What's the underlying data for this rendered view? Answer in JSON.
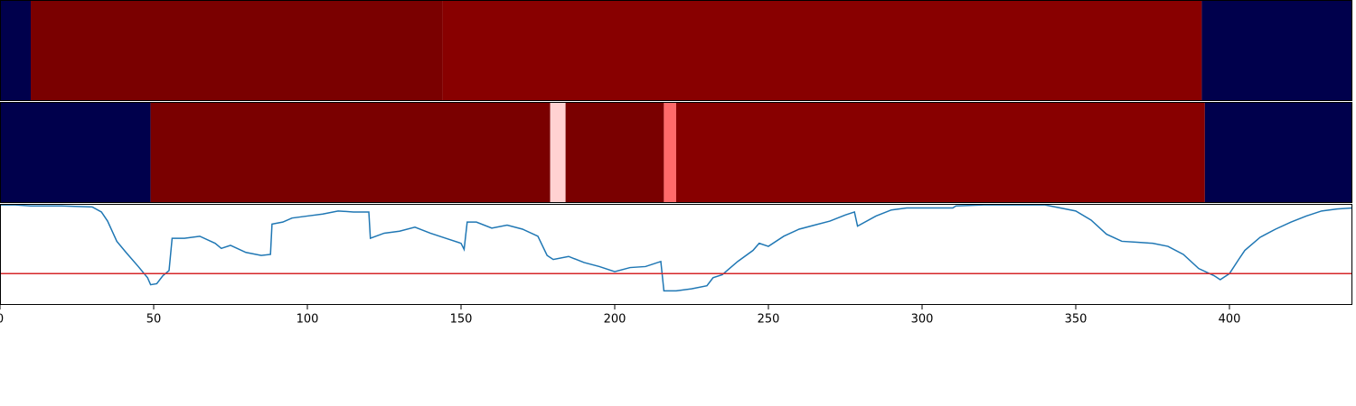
{
  "chart_data": [
    {
      "type": "heatmap",
      "xlim": [
        0,
        440
      ],
      "segments": [
        {
          "start": 0,
          "end": 10,
          "color": "#00004c"
        },
        {
          "start": 10,
          "end": 144,
          "color": "#7a0000"
        },
        {
          "start": 144,
          "end": 391,
          "color": "#880000"
        },
        {
          "start": 391,
          "end": 440,
          "color": "#00004c"
        }
      ]
    },
    {
      "type": "heatmap",
      "xlim": [
        0,
        440
      ],
      "segments": [
        {
          "start": 0,
          "end": 49,
          "color": "#00004c"
        },
        {
          "start": 49,
          "end": 179,
          "color": "#7a0000"
        },
        {
          "start": 179,
          "end": 184,
          "color": "#ffd2d2"
        },
        {
          "start": 184,
          "end": 216,
          "color": "#7a0000"
        },
        {
          "start": 216,
          "end": 220,
          "color": "#ff6a6a"
        },
        {
          "start": 220,
          "end": 392,
          "color": "#880000"
        },
        {
          "start": 392,
          "end": 440,
          "color": "#00004c"
        }
      ]
    },
    {
      "type": "line",
      "xlim": [
        0,
        440
      ],
      "ylim": [
        0,
        1
      ],
      "xticks": [
        0,
        50,
        100,
        150,
        200,
        250,
        300,
        350,
        400
      ],
      "threshold": 0.31,
      "threshold_color": "#d62728",
      "series": [
        {
          "color": "#1f77b4",
          "x": [
            0,
            5,
            10,
            20,
            30,
            33,
            35,
            38,
            41,
            45,
            48,
            49,
            51,
            53,
            55,
            56,
            60,
            65,
            70,
            72,
            75,
            80,
            85,
            88,
            88.5,
            92,
            95,
            100,
            105,
            110,
            115,
            120,
            120.5,
            125,
            130,
            135,
            140,
            145,
            150,
            151,
            152,
            155,
            160,
            165,
            170,
            175,
            178,
            180,
            185,
            190,
            195,
            200,
            205,
            210,
            215,
            216,
            220,
            225,
            230,
            232,
            235,
            240,
            245,
            247,
            250,
            255,
            260,
            265,
            270,
            275,
            278,
            279,
            285,
            290,
            295,
            300,
            310,
            311,
            320,
            330,
            340,
            345,
            350,
            355,
            360,
            365,
            370,
            375,
            380,
            385,
            390,
            395,
            397,
            400,
            403,
            405,
            410,
            415,
            420,
            425,
            430,
            435,
            440
          ],
          "values": [
            0.99,
            0.99,
            0.98,
            0.98,
            0.97,
            0.92,
            0.83,
            0.63,
            0.52,
            0.38,
            0.27,
            0.2,
            0.21,
            0.29,
            0.34,
            0.66,
            0.66,
            0.68,
            0.61,
            0.56,
            0.59,
            0.52,
            0.49,
            0.5,
            0.8,
            0.82,
            0.86,
            0.88,
            0.9,
            0.93,
            0.92,
            0.92,
            0.66,
            0.71,
            0.73,
            0.77,
            0.71,
            0.66,
            0.61,
            0.55,
            0.82,
            0.82,
            0.76,
            0.79,
            0.75,
            0.68,
            0.49,
            0.45,
            0.48,
            0.42,
            0.38,
            0.33,
            0.37,
            0.38,
            0.43,
            0.14,
            0.14,
            0.16,
            0.19,
            0.27,
            0.3,
            0.43,
            0.54,
            0.61,
            0.58,
            0.68,
            0.75,
            0.79,
            0.83,
            0.89,
            0.92,
            0.78,
            0.88,
            0.94,
            0.96,
            0.96,
            0.96,
            0.98,
            0.99,
            0.99,
            0.99,
            0.96,
            0.93,
            0.84,
            0.7,
            0.63,
            0.62,
            0.61,
            0.58,
            0.5,
            0.36,
            0.29,
            0.25,
            0.31,
            0.45,
            0.54,
            0.67,
            0.75,
            0.82,
            0.88,
            0.93,
            0.95,
            0.96
          ]
        }
      ]
    }
  ]
}
